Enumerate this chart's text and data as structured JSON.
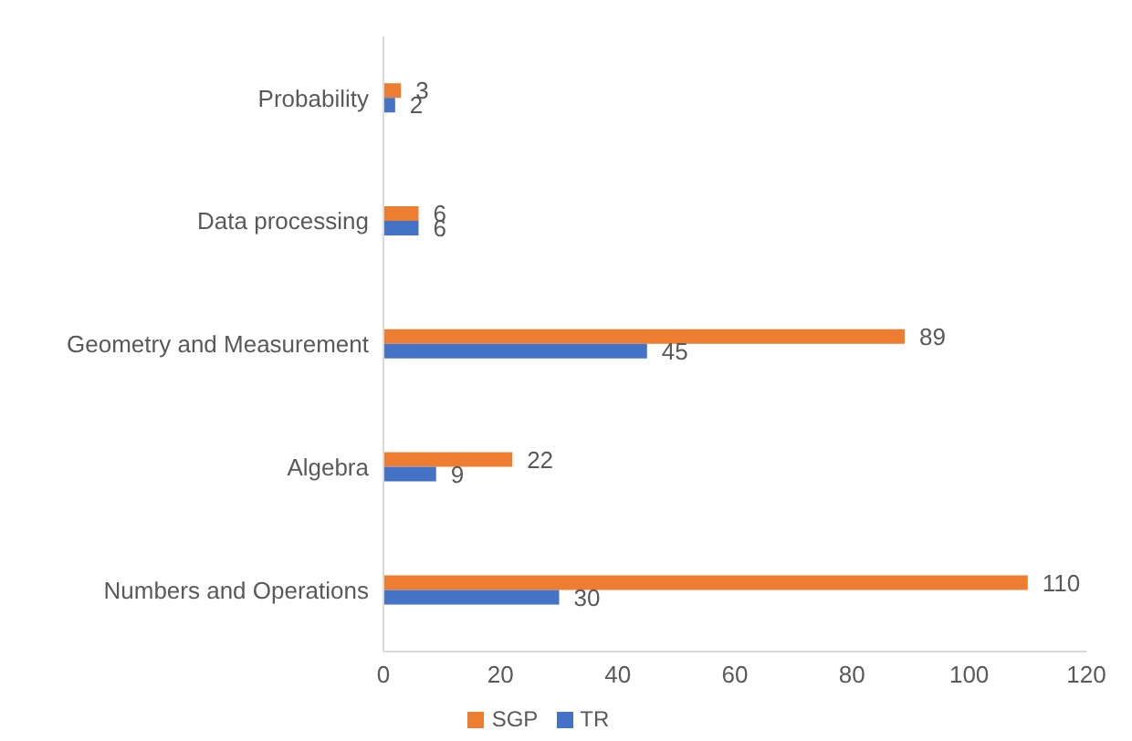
{
  "chart_data": {
    "type": "bar",
    "orientation": "horizontal",
    "categories": [
      "Probability",
      "Data processing",
      "Geometry and Measurement",
      "Algebra",
      "Numbers and Operations"
    ],
    "series": [
      {
        "name": "SGP",
        "color": "#ed7d31",
        "values": [
          3,
          6,
          89,
          22,
          110
        ]
      },
      {
        "name": "TR",
        "color": "#4472c4",
        "values": [
          2,
          6,
          45,
          9,
          30
        ]
      }
    ],
    "xlim": [
      0,
      120
    ],
    "xticks": [
      0,
      20,
      40,
      60,
      80,
      100,
      120
    ],
    "grid": false,
    "legend": "bottom",
    "data_labels": true
  }
}
